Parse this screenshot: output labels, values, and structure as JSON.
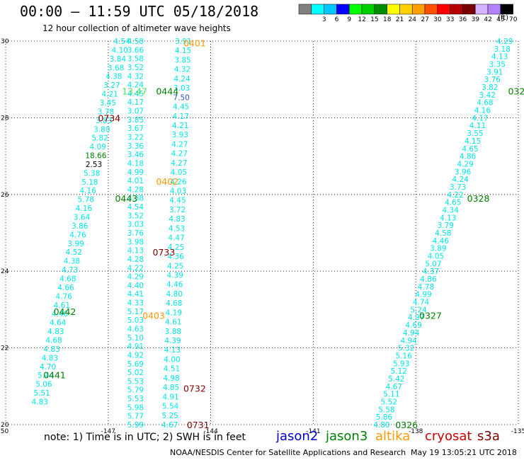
{
  "header": {
    "title": "00:00 – 11:59 UTC 05/18/2018",
    "subtitle": "12 hour collection of altimeter wave heights",
    "unit": "(ft)"
  },
  "colorbar": {
    "bins": [
      {
        "label": "",
        "color": "#808080"
      },
      {
        "label": "3",
        "color": "#00ffff"
      },
      {
        "label": "6",
        "color": "#00c8ff"
      },
      {
        "label": "9",
        "color": "#0000ff"
      },
      {
        "label": "12",
        "color": "#00ff00"
      },
      {
        "label": "15",
        "color": "#00d000"
      },
      {
        "label": "18",
        "color": "#008c00"
      },
      {
        "label": "21",
        "color": "#ffff00"
      },
      {
        "label": "24",
        "color": "#ffd000"
      },
      {
        "label": "27",
        "color": "#ffa000"
      },
      {
        "label": "30",
        "color": "#ff5000"
      },
      {
        "label": "33",
        "color": "#ff0000"
      },
      {
        "label": "36",
        "color": "#b40000"
      },
      {
        "label": "39",
        "color": "#780000"
      },
      {
        "label": "42",
        "color": "#d2b4ff"
      },
      {
        "label": "45",
        "color": "#b482ff"
      },
      {
        "label": "70",
        "color": "#000000"
      }
    ]
  },
  "map": {
    "lon_range": [
      -150,
      -135
    ],
    "lat_range": [
      20,
      30
    ],
    "lon_ticks": [
      "-150",
      "-147",
      "-144",
      "-141",
      "-138",
      "-135"
    ],
    "lat_ticks": [
      "30",
      "28",
      "26",
      "24",
      "22",
      "20"
    ],
    "colors": {
      "cyan": "#00e6e6",
      "green": "#55dd55",
      "darkgreen": "#008000",
      "orange": "#ff9900",
      "maroon": "#800000",
      "black": "#000000"
    }
  },
  "tracks": [
    {
      "id": "A",
      "start": [
        -149.0,
        20.6
      ],
      "end": [
        -146.6,
        30.0
      ],
      "values": [
        "4.83",
        "5.51",
        "5.06",
        "5.44",
        "4.70",
        "4.83",
        "4.83",
        "4.68",
        "4.83",
        "4.64",
        "4.46",
        "4.61",
        "4.76",
        "4.66",
        "4.68",
        "4.73",
        "4.38",
        "4.52",
        "3.99",
        "4.76",
        "3.86",
        "3.64",
        "4.16",
        "5.78",
        "4.16",
        "5.18",
        "5.38",
        "2.53",
        "18.66",
        "4.09",
        "5.82",
        "3.80",
        "3.83",
        "3.78",
        "3.45",
        "4.21",
        "3.27",
        "4.38",
        "3.68",
        "3.84",
        "4.10",
        "4.54"
      ],
      "special": {
        "18.66": "darkgreen",
        "2.53": "black"
      }
    },
    {
      "id": "B",
      "start": [
        -146.2,
        20.0
      ],
      "end": [
        -146.2,
        30.0
      ],
      "values": [
        "5.99",
        "5.77",
        "5.98",
        "5.53",
        "5.79",
        "5.53",
        "5.02",
        "5.69",
        "4.92",
        "4.91",
        "5.10",
        "4.63",
        "5.03",
        "5.17",
        "4.33",
        "4.41",
        "4.40",
        "4.29",
        "4.22",
        "4.28",
        "4.13",
        "3.98",
        "3.76",
        "3.03",
        "3.52",
        "4.54",
        "4.38",
        "4.28",
        "4.01",
        "4.99",
        "4.18",
        "3.46",
        "3.36",
        "3.22",
        "3.67",
        "3.85",
        "3.07",
        "4.17",
        "4.45",
        "4.24",
        "4.32",
        "3.52",
        "3.58",
        "3.66",
        "4.58"
      ],
      "special": {}
    },
    {
      "id": "C",
      "start": [
        -145.2,
        20.0
      ],
      "end": [
        -144.8,
        30.0
      ],
      "values": [
        "4.67",
        "5.25",
        "5.54",
        "4.91",
        "4.85",
        "4.98",
        "4.51",
        "4.00",
        "4.13",
        "4.39",
        "3.88",
        "4.61",
        "4.19",
        "4.68",
        "4.80",
        "4.46",
        "4.39",
        "4.25",
        "4.36",
        "4.25",
        "4.47",
        "4.53",
        "4.83",
        "3.72",
        "4.45",
        "4.03",
        "4.26",
        "4.05",
        "4.27",
        "4.27",
        "4.27",
        "3.93",
        "4.21",
        "4.17",
        "4.45",
        "7.50",
        "3.03",
        "4.24",
        "4.32",
        "3.85",
        "4.15",
        "3.91"
      ],
      "special": {
        "7.50": "blue"
      }
    },
    {
      "id": "D",
      "start": [
        -139.0,
        20.0
      ],
      "end": [
        -135.4,
        30.0
      ],
      "values": [
        "4.80",
        "5.86",
        "5.58",
        "5.52",
        "5.11",
        "4.67",
        "5.42",
        "5.12",
        "5.93",
        "5.16",
        "5.32",
        "4.94",
        "4.94",
        "4.69",
        "4.97",
        "5.24",
        "4.74",
        "4.99",
        "4.78",
        "4.86",
        "4.37",
        "5.07",
        "4.05",
        "3.89",
        "4.46",
        "4.58",
        "3.79",
        "4.13",
        "4.34",
        "4.65",
        "4.22",
        "3.73",
        "4.24",
        "3.96",
        "4.29",
        "4.86",
        "4.65",
        "4.15",
        "3.55",
        "4.11",
        "4.17",
        "4.16",
        "4.68",
        "3.42",
        "3.82",
        "3.76",
        "3.91",
        "3.35",
        "4.13",
        "3.18",
        "4.29"
      ],
      "special": {}
    }
  ],
  "pass_labels": [
    {
      "text": "0401",
      "lon": -144.8,
      "lat": 29.95,
      "color": "orange"
    },
    {
      "text": "0444",
      "lon": -145.6,
      "lat": 28.7,
      "color": "darkgreen"
    },
    {
      "text": "13.47",
      "lon": -146.6,
      "lat": 28.7,
      "color": "green"
    },
    {
      "text": "0734",
      "lon": -147.3,
      "lat": 28.0,
      "color": "maroon"
    },
    {
      "text": "0402",
      "lon": -145.6,
      "lat": 26.35,
      "color": "orange"
    },
    {
      "text": "0443",
      "lon": -146.8,
      "lat": 25.9,
      "color": "darkgreen"
    },
    {
      "text": "0733",
      "lon": -145.7,
      "lat": 24.5,
      "color": "maroon"
    },
    {
      "text": "0442",
      "lon": -148.6,
      "lat": 22.95,
      "color": "darkgreen"
    },
    {
      "text": "0403",
      "lon": -146.0,
      "lat": 22.85,
      "color": "orange"
    },
    {
      "text": "0441",
      "lon": -148.9,
      "lat": 21.3,
      "color": "darkgreen"
    },
    {
      "text": "0732",
      "lon": -144.8,
      "lat": 20.95,
      "color": "maroon"
    },
    {
      "text": "0731",
      "lon": -144.7,
      "lat": 20.0,
      "color": "maroon"
    },
    {
      "text": "0326",
      "lon": -138.6,
      "lat": 20.0,
      "color": "darkgreen"
    },
    {
      "text": "0327",
      "lon": -137.9,
      "lat": 22.85,
      "color": "darkgreen"
    },
    {
      "text": "0328",
      "lon": -136.5,
      "lat": 25.9,
      "color": "darkgreen"
    },
    {
      "text": "032",
      "lon": -135.3,
      "lat": 28.7,
      "color": "darkgreen"
    }
  ],
  "footer": {
    "note": "note: 1) Time is in UTC; 2) SWH is in feet",
    "satellites": [
      {
        "name": "jason2",
        "color": "#0000cc"
      },
      {
        "name": "jason3",
        "color": "#008000"
      },
      {
        "name": "altika",
        "color": "#ff9900"
      },
      {
        "name": "cryosat",
        "color": "#cc0000"
      },
      {
        "name": "s3a",
        "color": "#800000"
      }
    ],
    "credit": "NOAA/NESDIS Center for Satellite Applications and Research",
    "timestamp": "May 19 13:05:21 UTC 2018"
  }
}
